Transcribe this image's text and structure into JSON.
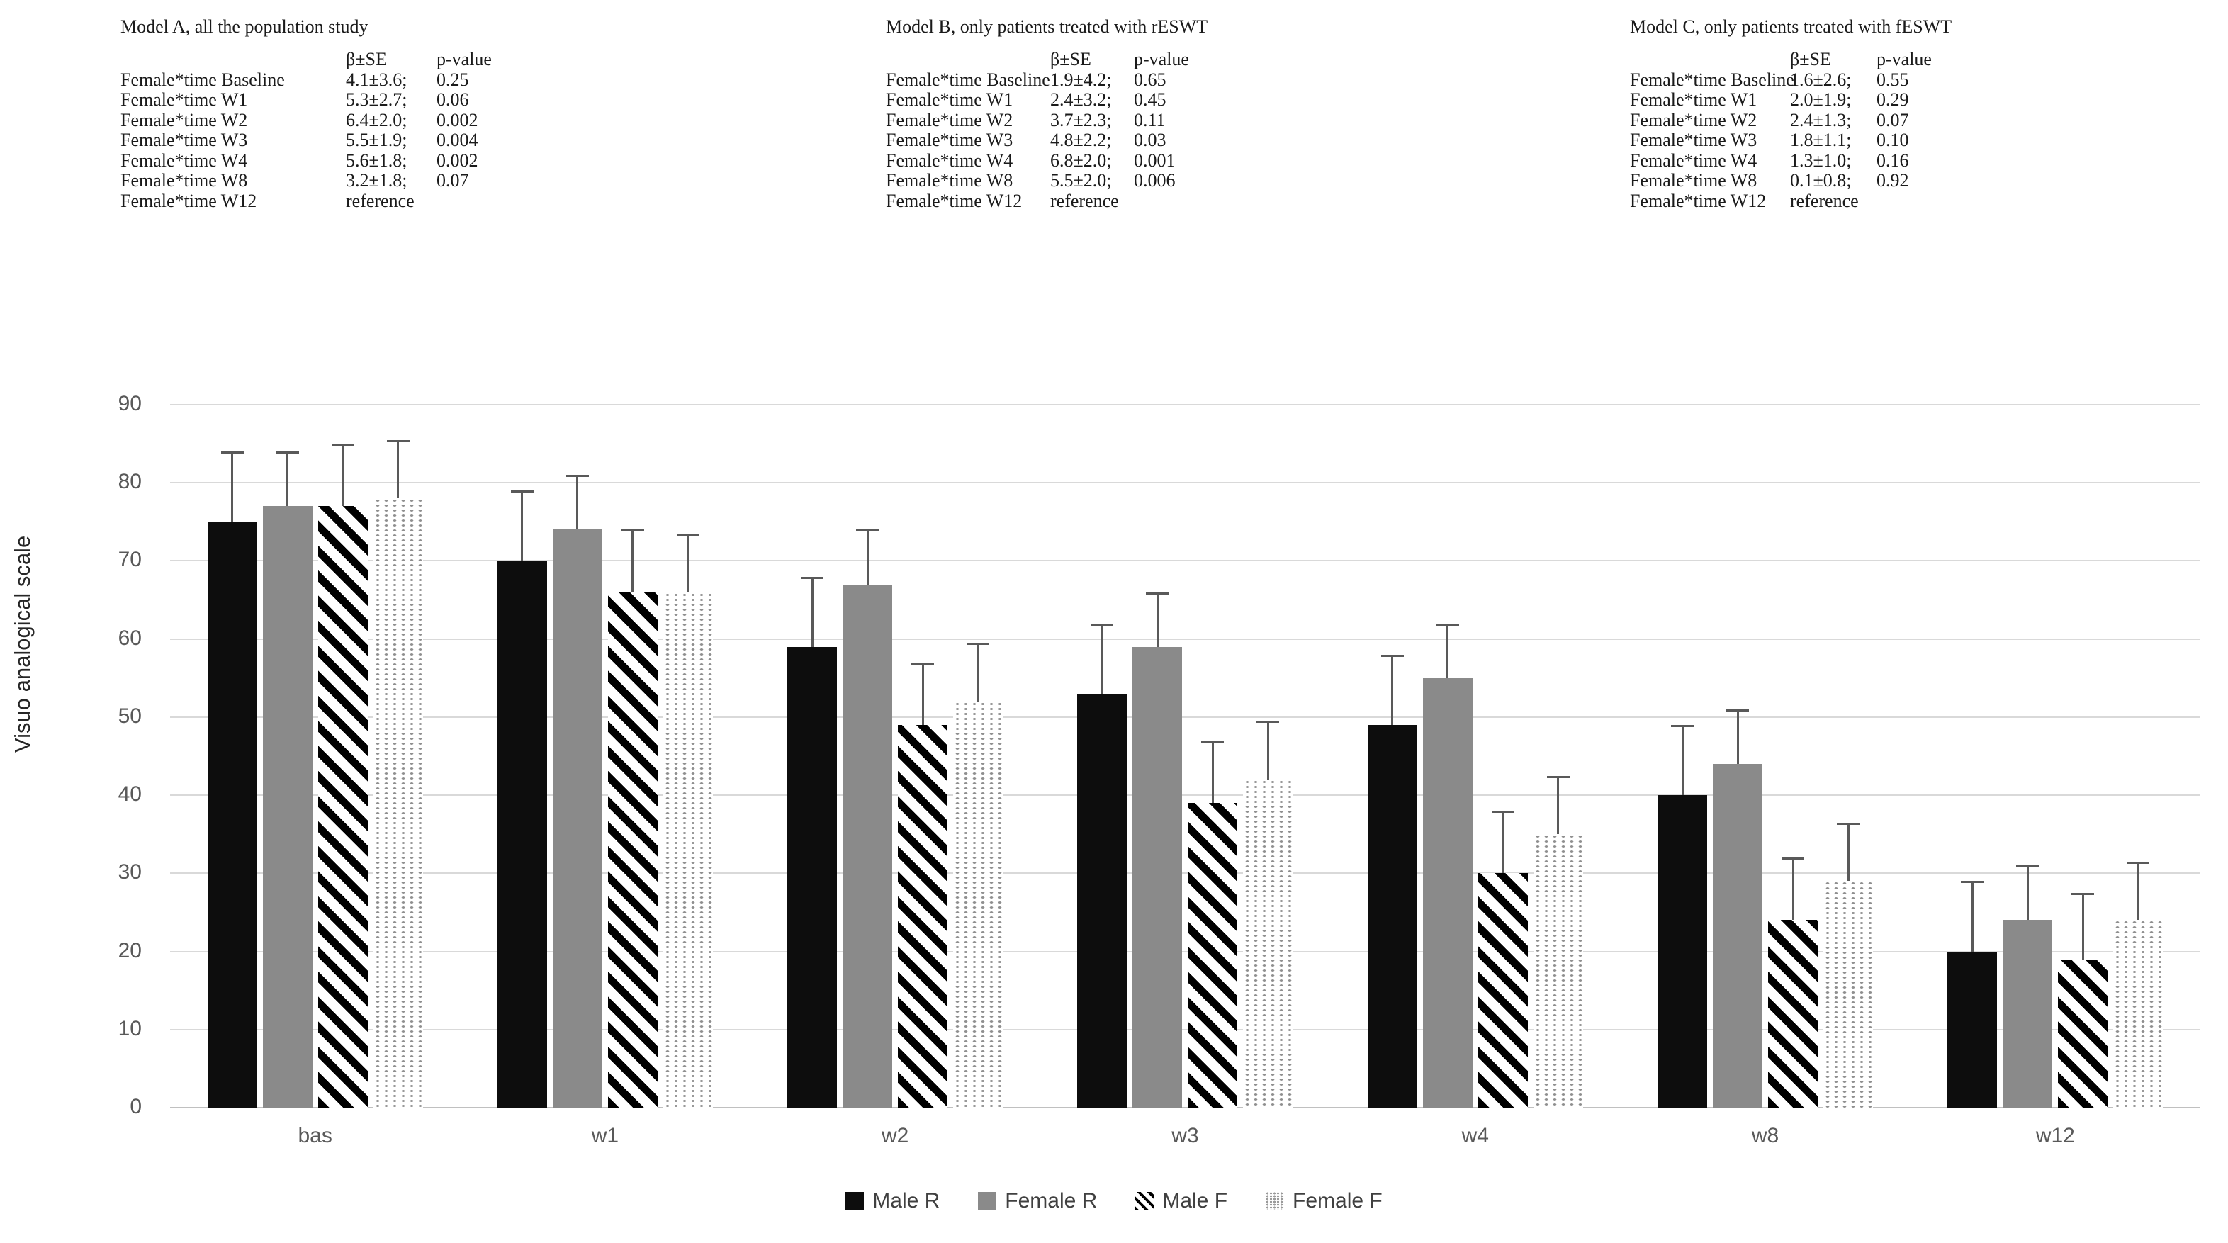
{
  "tables": [
    {
      "title": "Model A, all the population study",
      "col_headers": {
        "beta": "β±SE",
        "p": "p-value"
      },
      "rows": [
        {
          "label": "Female*time Baseline",
          "beta": "4.1±3.6;",
          "p": "0.25"
        },
        {
          "label": "Female*time W1",
          "beta": "5.3±2.7;",
          "p": "0.06"
        },
        {
          "label": "Female*time W2",
          "beta": "6.4±2.0;",
          "p": "0.002"
        },
        {
          "label": "Female*time W3",
          "beta": "5.5±1.9;",
          "p": "0.004"
        },
        {
          "label": "Female*time W4",
          "beta": "5.6±1.8;",
          "p": "0.002"
        },
        {
          "label": "Female*time W8",
          "beta": "3.2±1.8;",
          "p": "0.07"
        },
        {
          "label": "Female*time W12",
          "beta": "reference",
          "p": ""
        }
      ]
    },
    {
      "title": "Model B, only patients treated with rESWT",
      "col_headers": {
        "beta": "β±SE",
        "p": "p-value"
      },
      "rows": [
        {
          "label": "Female*time Baseline",
          "beta": "1.9±4.2;",
          "p": "0.65"
        },
        {
          "label": "Female*time W1",
          "beta": "2.4±3.2;",
          "p": "0.45"
        },
        {
          "label": "Female*time W2",
          "beta": "3.7±2.3;",
          "p": "0.11"
        },
        {
          "label": "Female*time W3",
          "beta": "4.8±2.2;",
          "p": "0.03"
        },
        {
          "label": "Female*time W4",
          "beta": "6.8±2.0;",
          "p": "0.001"
        },
        {
          "label": "Female*time W8",
          "beta": "5.5±2.0;",
          "p": "0.006"
        },
        {
          "label": "Female*time W12",
          "beta": "reference",
          "p": ""
        }
      ]
    },
    {
      "title": "Model C, only patients treated with fESWT",
      "col_headers": {
        "beta": "β±SE",
        "p": "p-value"
      },
      "rows": [
        {
          "label": "Female*time Baseline",
          "beta": "1.6±2.6;",
          "p": "0.55"
        },
        {
          "label": "Female*time W1",
          "beta": "2.0±1.9;",
          "p": "0.29"
        },
        {
          "label": "Female*time W2",
          "beta": "2.4±1.3;",
          "p": "0.07"
        },
        {
          "label": "Female*time W3",
          "beta": "1.8±1.1;",
          "p": "0.10"
        },
        {
          "label": "Female*time W4",
          "beta": "1.3±1.0;",
          "p": "0.16"
        },
        {
          "label": "Female*time W8",
          "beta": "0.1±0.8;",
          "p": "0.92"
        },
        {
          "label": "Female*time W12",
          "beta": "reference",
          "p": ""
        }
      ]
    }
  ],
  "chart_data": {
    "type": "bar",
    "title": "",
    "xlabel": "",
    "ylabel": "Visuo analogical scale",
    "ylim": [
      0,
      90
    ],
    "yticks": [
      90,
      80,
      70,
      60,
      50,
      40,
      30,
      20,
      10,
      0
    ],
    "grid": true,
    "legend_position": "bottom",
    "error_bars": "upper",
    "categories": [
      "bas",
      "w1",
      "w2",
      "w3",
      "w4",
      "w8",
      "w12"
    ],
    "series": [
      {
        "name": "Male R",
        "pattern": "solid-black",
        "color": "#0d0d0d",
        "values": [
          75,
          70,
          59,
          53,
          49,
          40,
          20
        ],
        "errors": [
          9,
          9,
          9,
          9,
          9,
          9,
          9
        ]
      },
      {
        "name": "Female R",
        "pattern": "solid-gray",
        "color": "#8a8a8a",
        "values": [
          77,
          74,
          67,
          59,
          55,
          44,
          24
        ],
        "errors": [
          7,
          7,
          7,
          7,
          7,
          7,
          7
        ]
      },
      {
        "name": "Male F",
        "pattern": "diagonal-hatch",
        "color": "#000000",
        "values": [
          77,
          66,
          49,
          39,
          30,
          24,
          19
        ],
        "errors": [
          8,
          8,
          8,
          8,
          8,
          8,
          8.5
        ]
      },
      {
        "name": "Female F",
        "pattern": "dot-grid",
        "color": "#9a9a9a",
        "values": [
          78,
          66,
          52,
          42,
          35,
          29,
          24
        ],
        "errors": [
          7.5,
          7.5,
          7.5,
          7.5,
          7.5,
          7.5,
          7.5
        ]
      }
    ]
  }
}
